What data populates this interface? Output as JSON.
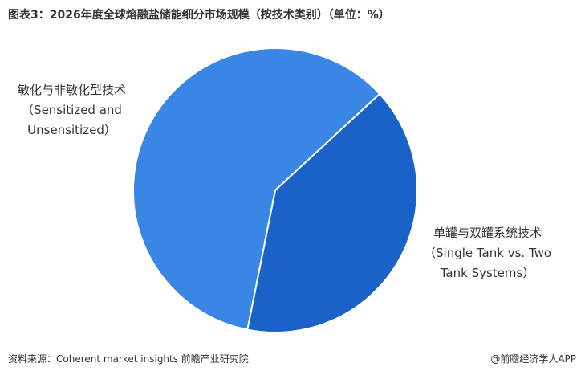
{
  "chart_data": {
    "type": "pie",
    "title": "图表3：2026年度全球熔融盐储能细分市场规模（按技术类别）（单位：%）",
    "categories": [
      "敏化与非敏化型技术\n（Sensitized and\nUnsensitized）",
      "单罐与双罐系统技术\n（Single Tank vs. Two\nTank Systems）"
    ],
    "values": [
      60,
      40
    ],
    "colors": [
      "#3a86e4",
      "#1a62c8"
    ],
    "source": "资料来源：Coherent market insights  前瞻产业研究院",
    "credit": "@前瞻经济学人APP"
  }
}
